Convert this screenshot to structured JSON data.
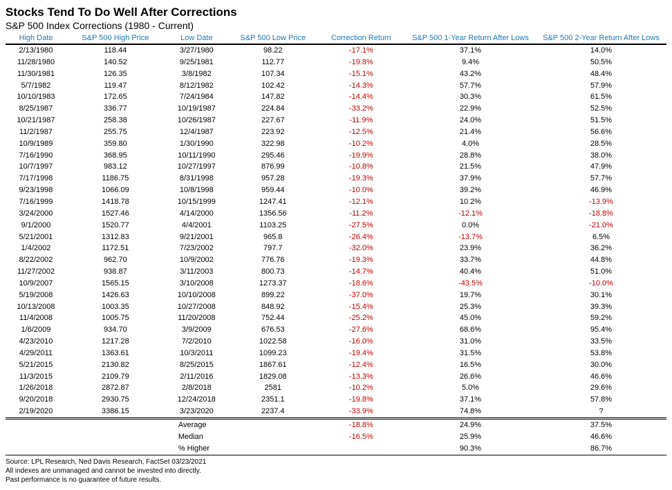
{
  "title": "Stocks Tend To Do Well After Corrections",
  "subtitle": "S&P 500 Index Corrections (1980 - Current)",
  "header_color": "#1f77b4",
  "negative_color": "#c00000",
  "background_color": "#ffffff",
  "text_color": "#000000",
  "columns": [
    "High Date",
    "S&P 500 High Price",
    "Low Date",
    "S&P 500 Low Price",
    "Correction Return",
    "S&P 500 1-Year Return After Lows",
    "S&P 500 2-Year Return After Lows"
  ],
  "rows": [
    [
      "2/13/1980",
      "118.44",
      "3/27/1980",
      "98.22",
      "-17.1%",
      "37.1%",
      "14.0%"
    ],
    [
      "11/28/1980",
      "140.52",
      "9/25/1981",
      "112.77",
      "-19.8%",
      "9.4%",
      "50.5%"
    ],
    [
      "11/30/1981",
      "126.35",
      "3/8/1982",
      "107.34",
      "-15.1%",
      "43.2%",
      "48.4%"
    ],
    [
      "5/7/1982",
      "119.47",
      "8/12/1982",
      "102.42",
      "-14.3%",
      "57.7%",
      "57.9%"
    ],
    [
      "10/10/1983",
      "172.65",
      "7/24/1984",
      "147.82",
      "-14.4%",
      "30.3%",
      "61.5%"
    ],
    [
      "8/25/1987",
      "336.77",
      "10/19/1987",
      "224.84",
      "-33.2%",
      "22.9%",
      "52.5%"
    ],
    [
      "10/21/1987",
      "258.38",
      "10/26/1987",
      "227.67",
      "-11.9%",
      "24.0%",
      "51.5%"
    ],
    [
      "11/2/1987",
      "255.75",
      "12/4/1987",
      "223.92",
      "-12.5%",
      "21.4%",
      "56.6%"
    ],
    [
      "10/9/1989",
      "359.80",
      "1/30/1990",
      "322.98",
      "-10.2%",
      "4.0%",
      "28.5%"
    ],
    [
      "7/16/1990",
      "368.95",
      "10/11/1990",
      "295.46",
      "-19.9%",
      "28.8%",
      "38.0%"
    ],
    [
      "10/7/1997",
      "983.12",
      "10/27/1997",
      "876.99",
      "-10.8%",
      "21.5%",
      "47.9%"
    ],
    [
      "7/17/1998",
      "1186.75",
      "8/31/1998",
      "957.28",
      "-19.3%",
      "37.9%",
      "57.7%"
    ],
    [
      "9/23/1998",
      "1066.09",
      "10/8/1998",
      "959.44",
      "-10.0%",
      "39.2%",
      "46.9%"
    ],
    [
      "7/16/1999",
      "1418.78",
      "10/15/1999",
      "1247.41",
      "-12.1%",
      "10.2%",
      "-13.9%"
    ],
    [
      "3/24/2000",
      "1527.46",
      "4/14/2000",
      "1356.56",
      "-11.2%",
      "-12.1%",
      "-18.8%"
    ],
    [
      "9/1/2000",
      "1520.77",
      "4/4/2001",
      "1103.25",
      "-27.5%",
      "0.0%",
      "-21.0%"
    ],
    [
      "5/21/2001",
      "1312.83",
      "9/21/2001",
      "965.8",
      "-26.4%",
      "-13.7%",
      "6.5%"
    ],
    [
      "1/4/2002",
      "1172.51",
      "7/23/2002",
      "797.7",
      "-32.0%",
      "23.9%",
      "36.2%"
    ],
    [
      "8/22/2002",
      "962.70",
      "10/9/2002",
      "776.76",
      "-19.3%",
      "33.7%",
      "44.8%"
    ],
    [
      "11/27/2002",
      "938.87",
      "3/11/2003",
      "800.73",
      "-14.7%",
      "40.4%",
      "51.0%"
    ],
    [
      "10/9/2007",
      "1565.15",
      "3/10/2008",
      "1273.37",
      "-18.6%",
      "-43.5%",
      "-10.0%"
    ],
    [
      "5/19/2008",
      "1426.63",
      "10/10/2008",
      "899.22",
      "-37.0%",
      "19.7%",
      "30.1%"
    ],
    [
      "10/13/2008",
      "1003.35",
      "10/27/2008",
      "848.92",
      "-15.4%",
      "25.3%",
      "39.3%"
    ],
    [
      "11/4/2008",
      "1005.75",
      "11/20/2008",
      "752.44",
      "-25.2%",
      "45.0%",
      "59.2%"
    ],
    [
      "1/6/2009",
      "934.70",
      "3/9/2009",
      "676.53",
      "-27.6%",
      "68.6%",
      "95.4%"
    ],
    [
      "4/23/2010",
      "1217.28",
      "7/2/2010",
      "1022.58",
      "-16.0%",
      "31.0%",
      "33.5%"
    ],
    [
      "4/29/2011",
      "1363.61",
      "10/3/2011",
      "1099.23",
      "-19.4%",
      "31.5%",
      "53.8%"
    ],
    [
      "5/21/2015",
      "2130.82",
      "8/25/2015",
      "1867.61",
      "-12.4%",
      "16.5%",
      "30.0%"
    ],
    [
      "11/3/2015",
      "2109.79",
      "2/11/2016",
      "1829.08",
      "-13.3%",
      "26.6%",
      "46.6%"
    ],
    [
      "1/26/2018",
      "2872.87",
      "2/8/2018",
      "2581",
      "-10.2%",
      "5.0%",
      "29.6%"
    ],
    [
      "9/20/2018",
      "2930.75",
      "12/24/2018",
      "2351.1",
      "-19.8%",
      "37.1%",
      "57.8%"
    ],
    [
      "2/19/2020",
      "3386.15",
      "3/23/2020",
      "2237.4",
      "-33.9%",
      "74.8%",
      "?"
    ]
  ],
  "summary": [
    {
      "label": "Average",
      "corr": "-18.8%",
      "r1": "24.9%",
      "r2": "37.5%"
    },
    {
      "label": "Median",
      "corr": "-16.5%",
      "r1": "25.9%",
      "r2": "46.6%"
    },
    {
      "label": "% Higher",
      "corr": "",
      "r1": "90.3%",
      "r2": "86.7%"
    }
  ],
  "footnotes": [
    "Source: LPL Research, Ned Davis Research, FactSet 03/23/2021",
    "All indexes are unmanaged and cannot be invested into directly.",
    "Past performance is no guarantee of future results."
  ]
}
